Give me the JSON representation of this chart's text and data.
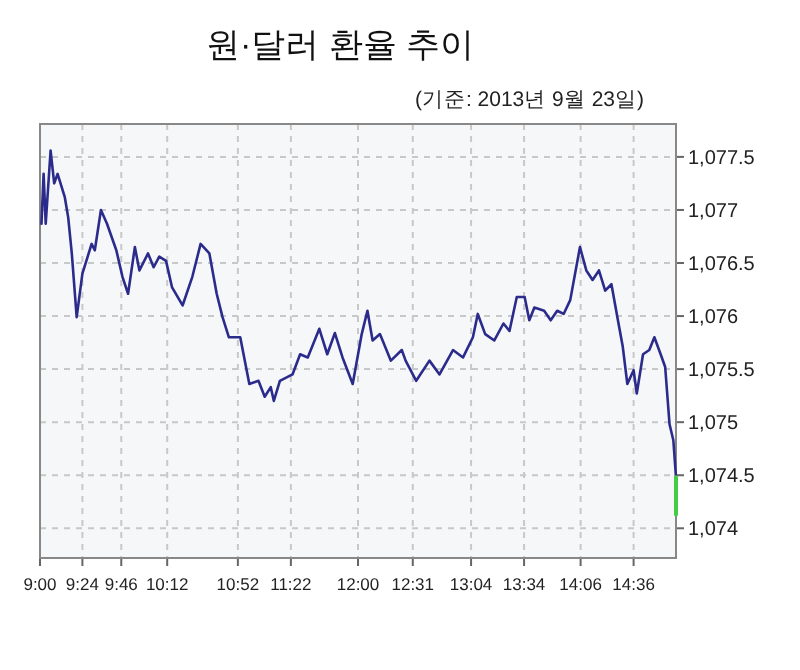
{
  "chart_data": {
    "type": "line",
    "title": "원·달러 환율 추이",
    "subtitle": "(기준: 2013년 9월 23일)",
    "xlim": [
      9,
      15
    ],
    "ylim": [
      1073.72,
      1077.81
    ],
    "grid": true,
    "xticks": [
      {
        "value": 9,
        "label": "9:00"
      },
      {
        "value": 9.4,
        "label": "9:24"
      },
      {
        "value": 9.7667,
        "label": "9:46"
      },
      {
        "value": 10.2,
        "label": "10:12"
      },
      {
        "value": 10.8667,
        "label": "10:52"
      },
      {
        "value": 11.3667,
        "label": "11:22"
      },
      {
        "value": 12,
        "label": "12:00"
      },
      {
        "value": 12.5167,
        "label": "12:31"
      },
      {
        "value": 13.0667,
        "label": "13:04"
      },
      {
        "value": 13.5667,
        "label": "13:34"
      },
      {
        "value": 14.1,
        "label": "14:06"
      },
      {
        "value": 14.6,
        "label": "14:36"
      }
    ],
    "yticks": [
      {
        "value": 1074,
        "label": "1,074"
      },
      {
        "value": 1074.5,
        "label": "1,074.5"
      },
      {
        "value": 1075,
        "label": "1,075"
      },
      {
        "value": 1075.5,
        "label": "1,075.5"
      },
      {
        "value": 1076,
        "label": "1,076"
      },
      {
        "value": 1076.5,
        "label": "1,076.5"
      },
      {
        "value": 1077,
        "label": "1,077"
      },
      {
        "value": 1077.5,
        "label": "1,077.5"
      }
    ],
    "series": [
      {
        "color": "#2b2b8c",
        "x": [
          9.014,
          9.034,
          9.054,
          9.1,
          9.134,
          9.166,
          9.234,
          9.266,
          9.3,
          9.346,
          9.4,
          9.487,
          9.517,
          9.575,
          9.632,
          9.72,
          9.778,
          9.831,
          9.895,
          9.938,
          10.019,
          10.072,
          10.125,
          10.189,
          10.246,
          10.345,
          10.437,
          10.515,
          10.598,
          10.667,
          10.722,
          10.782,
          10.889,
          10.975,
          11.061,
          11.12,
          11.177,
          11.206,
          11.263,
          11.382,
          11.454,
          11.526,
          11.635,
          11.71,
          11.782,
          11.854,
          11.95,
          12.035,
          12.089,
          12.138,
          12.207,
          12.31,
          12.413,
          12.449,
          12.549,
          12.674,
          12.769,
          12.896,
          12.991,
          13.084,
          13.13,
          13.2,
          13.286,
          13.372,
          13.429,
          13.498,
          13.572,
          13.616,
          13.664,
          13.756,
          13.818,
          13.879,
          13.94,
          14.002,
          14.094,
          14.154,
          14.213,
          14.273,
          14.332,
          14.391,
          14.452,
          14.498,
          14.541,
          14.6,
          14.63,
          14.689,
          14.748,
          14.796,
          14.855,
          14.898,
          14.939,
          14.975,
          15.0
        ],
        "values": [
          1076.87,
          1077.34,
          1076.87,
          1077.56,
          1077.25,
          1077.34,
          1077.12,
          1076.93,
          1076.59,
          1075.99,
          1076.4,
          1076.68,
          1076.62,
          1077.0,
          1076.87,
          1076.62,
          1076.37,
          1076.21,
          1076.65,
          1076.43,
          1076.59,
          1076.46,
          1076.56,
          1076.52,
          1076.27,
          1076.1,
          1076.37,
          1076.68,
          1076.59,
          1076.21,
          1075.99,
          1075.8,
          1075.8,
          1075.36,
          1075.39,
          1075.24,
          1075.33,
          1075.2,
          1075.39,
          1075.45,
          1075.64,
          1075.61,
          1075.88,
          1075.64,
          1075.84,
          1075.61,
          1075.36,
          1075.83,
          1076.05,
          1075.77,
          1075.83,
          1075.58,
          1075.68,
          1075.58,
          1075.39,
          1075.58,
          1075.45,
          1075.68,
          1075.61,
          1075.8,
          1076.02,
          1075.83,
          1075.77,
          1075.93,
          1075.86,
          1076.18,
          1076.18,
          1075.96,
          1076.08,
          1076.05,
          1075.96,
          1076.05,
          1076.02,
          1076.15,
          1076.65,
          1076.43,
          1076.34,
          1076.43,
          1076.24,
          1076.3,
          1075.96,
          1075.71,
          1075.36,
          1075.49,
          1075.27,
          1075.64,
          1075.68,
          1075.8,
          1075.64,
          1075.52,
          1074.98,
          1074.83,
          1074.48
        ]
      },
      {
        "color": "#44cc44",
        "x": [
          15.0,
          15.0
        ],
        "values": [
          1074.48,
          1074.13
        ]
      }
    ]
  }
}
